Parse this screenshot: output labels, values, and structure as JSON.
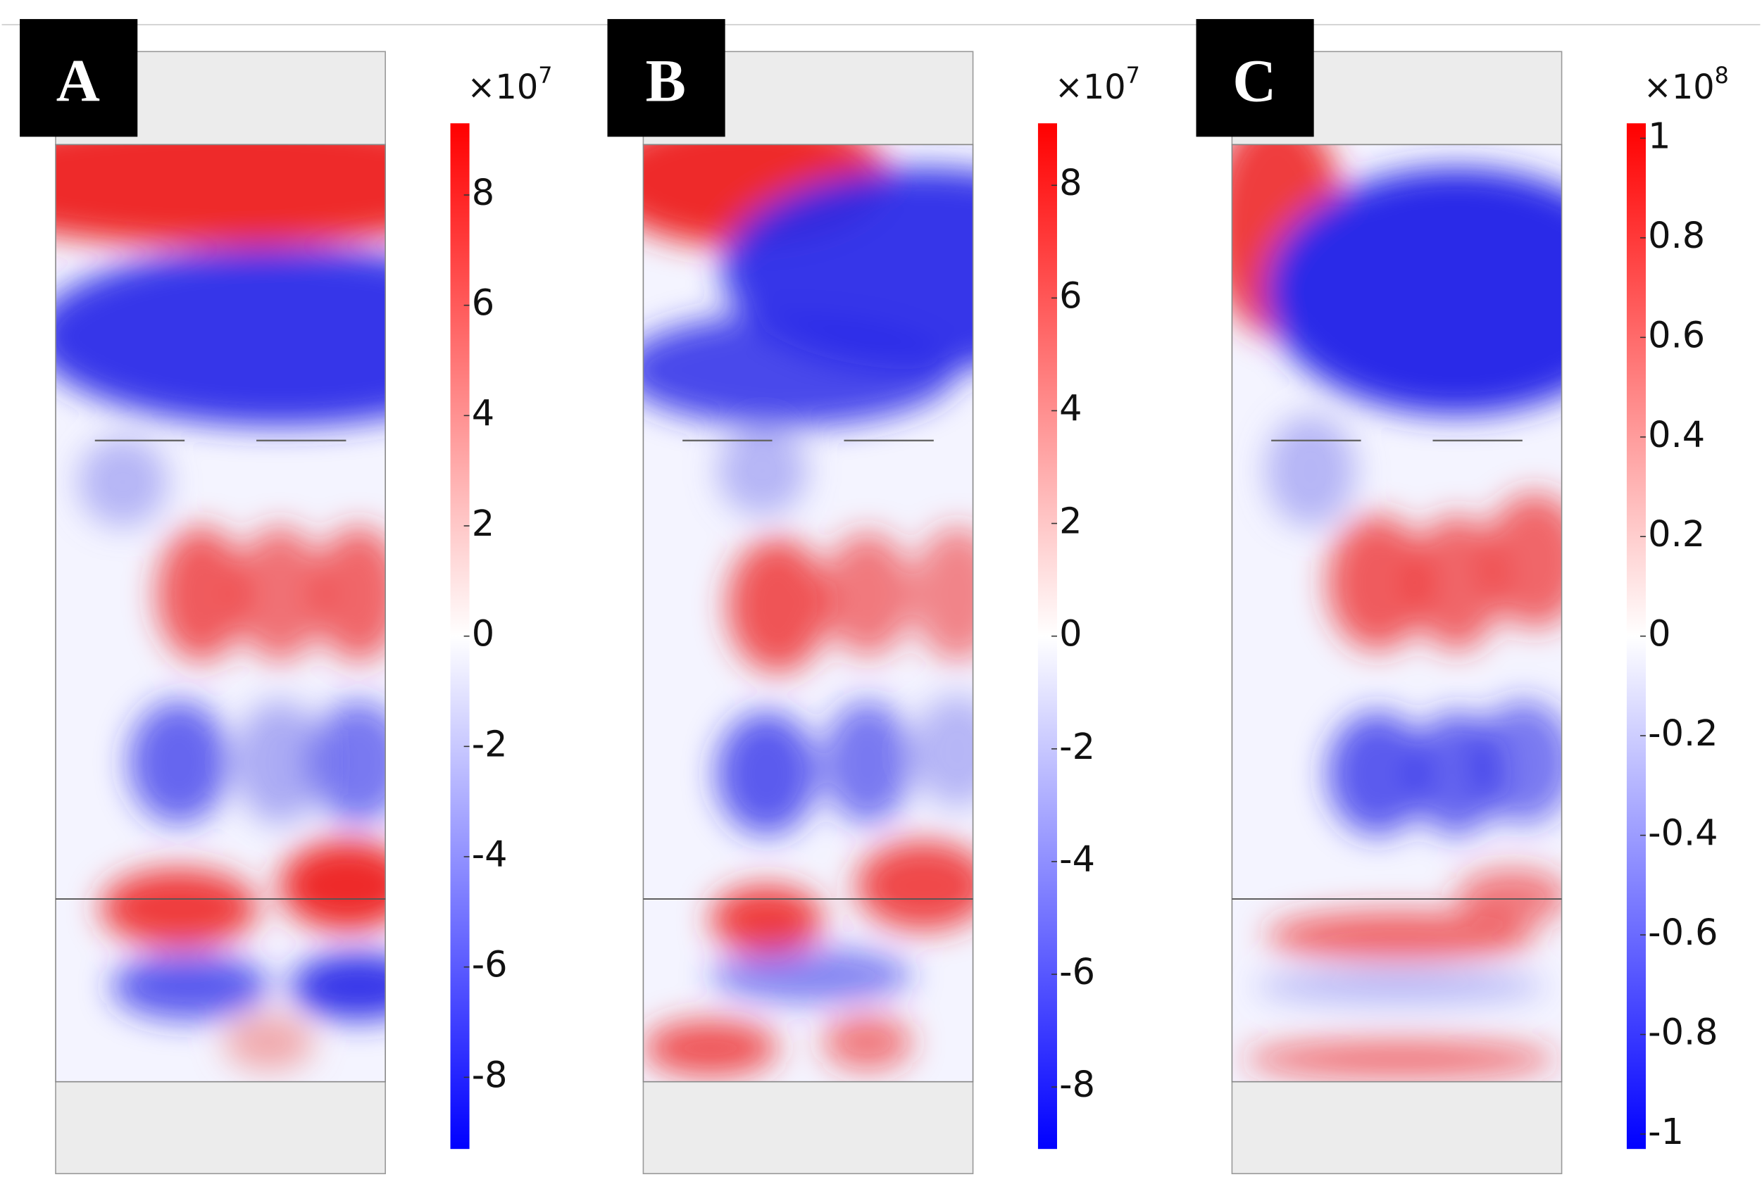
{
  "panels": [
    {
      "label": "A",
      "multiplier": {
        "base": "×10",
        "exponent": "7"
      },
      "colorbar": {
        "lim": [
          -9.3,
          9.3
        ],
        "ticks": [
          8,
          6,
          4,
          2,
          0,
          -2,
          -4,
          -6,
          -8
        ]
      }
    },
    {
      "label": "B",
      "multiplier": {
        "base": "×10",
        "exponent": "7"
      },
      "colorbar": {
        "lim": [
          -9.1,
          9.1
        ],
        "ticks": [
          8,
          6,
          4,
          2,
          0,
          -2,
          -4,
          -6,
          -8
        ]
      }
    },
    {
      "label": "C",
      "multiplier": {
        "base": "×10",
        "exponent": "8"
      },
      "colorbar": {
        "lim": [
          -1.03,
          1.03
        ],
        "ticks": [
          1,
          0.8,
          0.6,
          0.4,
          0.2,
          0,
          -0.2,
          -0.4,
          -0.6,
          -0.8,
          -1
        ]
      }
    }
  ]
}
